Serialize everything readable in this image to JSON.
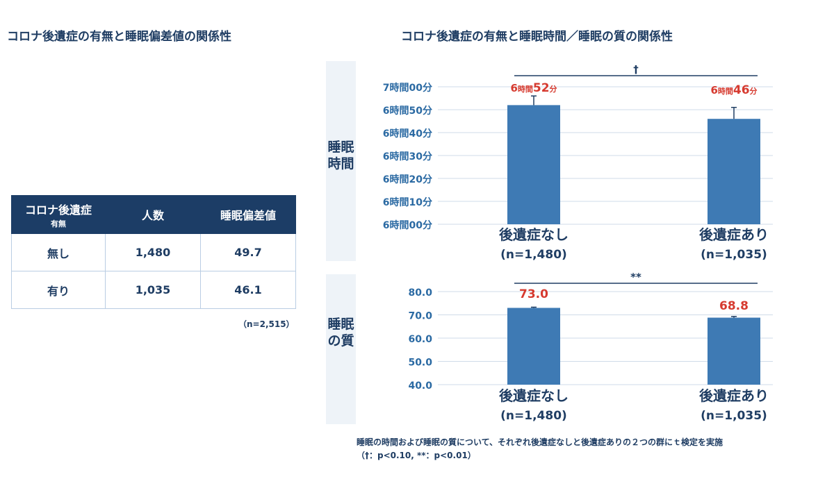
{
  "left_title": "コロナ後遺症の有無と睡眠偏差値の関係性",
  "right_title": "コロナ後遺症の有無と睡眠時間／睡眠の質の関係性",
  "table": {
    "headers": {
      "col1_main": "コロナ後遺症",
      "col1_sub": "有無",
      "col2": "人数",
      "col3": "睡眠偏差値"
    },
    "rows": [
      {
        "group": "無し",
        "count": "1,480",
        "score": "49.7"
      },
      {
        "group": "有り",
        "count": "1,035",
        "score": "46.1"
      }
    ],
    "n_note": "（n=2,515）"
  },
  "panel_labels": {
    "top": "睡眠時間",
    "bottom": "睡眠の質"
  },
  "chart_data": [
    {
      "type": "bar",
      "categories": [
        "後遺症なし",
        "後遺症あり"
      ],
      "category_n": [
        "(n=1,480)",
        "(n=1,035)"
      ],
      "values": [
        412,
        406
      ],
      "errors": [
        4,
        5
      ],
      "data_labels": [
        {
          "prefix": "6",
          "unit_h": "時間",
          "minutes": "52",
          "unit_m": "分"
        },
        {
          "prefix": "6",
          "unit_h": "時間",
          "minutes": "46",
          "unit_m": "分"
        }
      ],
      "ylim": [
        360,
        420
      ],
      "yticks": [
        360,
        370,
        380,
        390,
        400,
        410,
        420
      ],
      "ytick_labels": [
        "6時間00分",
        "6時間10分",
        "6時間20分",
        "6時間30分",
        "6時間40分",
        "6時間50分",
        "7時間00分"
      ],
      "significance": "†",
      "grid": true,
      "color": "#3e7ab4",
      "label_color": "#d63a2f"
    },
    {
      "type": "bar",
      "categories": [
        "後遺症なし",
        "後遺症あり"
      ],
      "category_n": [
        "(n=1,480)",
        "(n=1,035)"
      ],
      "values": [
        73.0,
        68.8
      ],
      "errors": [
        0.3,
        0.5
      ],
      "data_labels": [
        "73.0",
        "68.8"
      ],
      "ylim": [
        40,
        80
      ],
      "yticks": [
        40,
        50,
        60,
        70,
        80
      ],
      "ytick_labels": [
        "40.0",
        "50.0",
        "60.0",
        "70.0",
        "80.0"
      ],
      "significance": "**",
      "grid": true,
      "color": "#3e7ab4",
      "label_color": "#d63a2f"
    }
  ],
  "note": {
    "line1": "睡眠の時間および睡眠の質について、それぞれ後遺症なしと後遺症ありの２つの群にｔ検定を実施",
    "line2": "（†：p<0.10, **：p<0.01）"
  }
}
